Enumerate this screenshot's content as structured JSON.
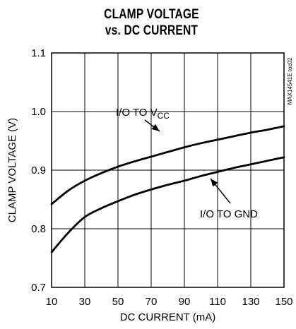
{
  "chart_data": {
    "type": "line",
    "title": "CLAMP VOLTAGE",
    "subtitle": "vs. DC CURRENT",
    "xlabel": "DC CURRENT (mA)",
    "ylabel": "CLAMP VOLTAGE (V)",
    "xlim": [
      10,
      150
    ],
    "ylim": [
      0.7,
      1.1
    ],
    "x_ticks": [
      10,
      30,
      50,
      70,
      90,
      110,
      130,
      150
    ],
    "y_ticks": [
      "0.7",
      "0.8",
      "0.9",
      "1.0",
      "1.1"
    ],
    "grid": true,
    "series": [
      {
        "name": "I/O TO VCC",
        "x": [
          10,
          20,
          30,
          40,
          50,
          60,
          70,
          80,
          90,
          100,
          110,
          120,
          130,
          140,
          150
        ],
        "values": [
          0.842,
          0.865,
          0.882,
          0.895,
          0.906,
          0.915,
          0.923,
          0.931,
          0.939,
          0.946,
          0.952,
          0.958,
          0.964,
          0.969,
          0.975
        ]
      },
      {
        "name": "I/O TO GND",
        "x": [
          10,
          20,
          30,
          40,
          50,
          60,
          70,
          80,
          90,
          100,
          110,
          120,
          130,
          140,
          150
        ],
        "values": [
          0.76,
          0.793,
          0.82,
          0.835,
          0.847,
          0.858,
          0.867,
          0.875,
          0.882,
          0.89,
          0.897,
          0.904,
          0.91,
          0.916,
          0.922
        ]
      }
    ],
    "annotations": [
      {
        "text_main": "I/O TO V",
        "text_sub": "CC",
        "series": "I/O TO VCC"
      },
      {
        "text_main": "I/O TO GND",
        "series": "I/O TO GND"
      }
    ],
    "side_code": "MAX14541E toc02"
  }
}
